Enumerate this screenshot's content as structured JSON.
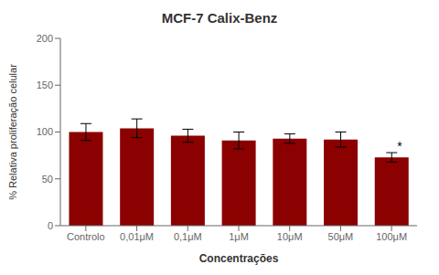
{
  "chart_data": {
    "type": "bar",
    "title": "MCF-7 Calix-Benz",
    "xlabel": "Concentrações",
    "ylabel": "% Relativa proliferação celular",
    "categories": [
      "Controlo",
      "0,01μM",
      "0,1μM",
      "1μM",
      "10μM",
      "50μM",
      "100μM"
    ],
    "values": [
      100,
      104,
      96,
      91,
      93,
      92,
      73
    ],
    "errors": [
      9,
      10,
      7,
      9,
      5,
      8,
      5
    ],
    "color": "#8B0000",
    "ylim": [
      0,
      200
    ],
    "yticks": [
      0,
      50,
      100,
      150,
      200
    ],
    "grid": false,
    "annotations": [
      {
        "text": "*",
        "category": "100μM"
      }
    ]
  }
}
